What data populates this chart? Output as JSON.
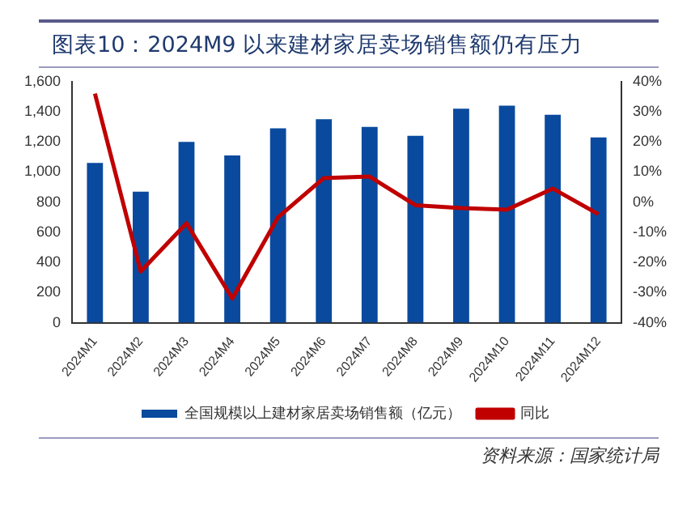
{
  "chart_data": {
    "type": "bar",
    "title": "图表10：2024M9 以来建材家居卖场销售额仍有压力",
    "categories": [
      "2024M1",
      "2024M2",
      "2024M3",
      "2024M4",
      "2024M5",
      "2024M6",
      "2024M7",
      "2024M8",
      "2024M9",
      "2024M10",
      "2024M11",
      "2024M12"
    ],
    "series": [
      {
        "name": "全国规模以上建材家居卖场销售额（亿元）",
        "color": "#0a4a9e",
        "values": [
          1060,
          870,
          1200,
          1110,
          1290,
          1350,
          1300,
          1240,
          1420,
          1440,
          1380,
          1230
        ]
      },
      {
        "name": "同比",
        "type": "line",
        "axis": "y2",
        "color": "#c00000",
        "values": [
          36,
          -23,
          -7,
          -32,
          -5,
          8,
          8.5,
          -1,
          -2,
          -2.5,
          4.5,
          -4
        ]
      }
    ],
    "ylim": [
      0,
      1600
    ],
    "yticks": [
      0,
      200,
      400,
      600,
      800,
      {
        "value": 1000,
        "label": "1,000"
      },
      {
        "value": 1200,
        "label": "1,200"
      },
      {
        "value": 1400,
        "label": "1,400"
      },
      {
        "value": 1600,
        "label": "1,600"
      }
    ],
    "y2lim": [
      -40,
      40
    ],
    "y2ticks": [
      {
        "value": -40,
        "label": "-40%"
      },
      {
        "value": -30,
        "label": "-30%"
      },
      {
        "value": -20,
        "label": "-20%"
      },
      {
        "value": -10,
        "label": "-10%"
      },
      {
        "value": 0,
        "label": "0%"
      },
      {
        "value": 10,
        "label": "10%"
      },
      {
        "value": 20,
        "label": "20%"
      },
      {
        "value": 30,
        "label": "30%"
      },
      {
        "value": 40,
        "label": "40%"
      }
    ],
    "grid": false,
    "legend": "bottom",
    "marker": "none",
    "line_style": "solid",
    "annotations": [
      "资料来源：国家统计局"
    ]
  }
}
